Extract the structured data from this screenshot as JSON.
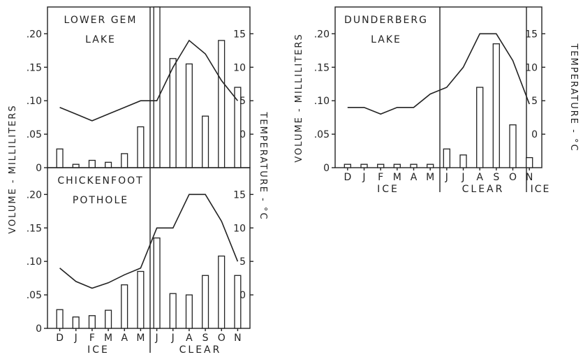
{
  "chart_data": [
    {
      "type": "bar+line",
      "title_lines": [
        "LOWER GEM",
        "LAKE"
      ],
      "categories": [
        "D",
        "J",
        "F",
        "M",
        "A",
        "M",
        "J",
        "J",
        "A",
        "S",
        "O",
        "N"
      ],
      "volume_ml": [
        0.028,
        0.005,
        0.011,
        0.008,
        0.021,
        0.061,
        0.24,
        0.163,
        0.155,
        0.077,
        0.19,
        0.12
      ],
      "temperature_c": [
        4,
        3,
        2,
        3,
        4,
        5,
        5,
        10,
        14,
        12,
        8,
        5
      ],
      "ylim_left": [
        0,
        0.24
      ],
      "ylim_right": [
        -5,
        19
      ],
      "left_ticks": [
        "0",
        ".05",
        ".10",
        ".15",
        ".20"
      ],
      "right_ticks": [
        "0",
        "5",
        "10",
        "15"
      ],
      "left_tick_values": [
        0,
        0.05,
        0.1,
        0.15,
        0.2
      ],
      "right_tick_values": [
        0,
        5,
        10,
        15
      ]
    },
    {
      "type": "bar+line",
      "title_lines": [
        "CHICKENFOOT",
        "POTHOLE"
      ],
      "categories": [
        "D",
        "J",
        "F",
        "M",
        "A",
        "M",
        "J",
        "J",
        "A",
        "S",
        "O",
        "N"
      ],
      "volume_ml": [
        0.028,
        0.017,
        0.019,
        0.027,
        0.065,
        0.085,
        0.135,
        0.052,
        0.05,
        0.079,
        0.108,
        0.079
      ],
      "temperature_c": [
        4,
        2,
        1,
        1.8,
        3,
        4,
        10,
        10,
        15,
        15,
        11,
        5
      ],
      "ylim_left": [
        0,
        0.24
      ],
      "ylim_right": [
        -5,
        19
      ],
      "left_ticks": [
        "0",
        ".05",
        ".10",
        ".15",
        ".20"
      ],
      "right_ticks": [
        "0",
        "5",
        "10",
        "15"
      ],
      "left_tick_values": [
        0,
        0.05,
        0.1,
        0.15,
        0.2
      ],
      "right_tick_values": [
        0,
        5,
        10,
        15
      ]
    },
    {
      "type": "bar+line",
      "title_lines": [
        "DUNDERBERG",
        "LAKE"
      ],
      "categories": [
        "D",
        "J",
        "F",
        "M",
        "A",
        "M",
        "J",
        "J",
        "A",
        "S",
        "O",
        "N"
      ],
      "volume_ml": [
        0.005,
        0.005,
        0.005,
        0.005,
        0.005,
        0.005,
        0.028,
        0.019,
        0.12,
        0.185,
        0.064,
        0.015
      ],
      "temperature_c": [
        4,
        4,
        3,
        4,
        4,
        6,
        7,
        10,
        15,
        15,
        11,
        4.5
      ],
      "ylim_left": [
        0,
        0.24
      ],
      "ylim_right": [
        -5,
        19
      ],
      "left_ticks": [
        "0",
        ".05",
        ".10",
        ".15",
        ".20"
      ],
      "right_ticks": [
        "0",
        "5",
        "10",
        "15"
      ],
      "left_tick_values": [
        0,
        0.05,
        0.1,
        0.15,
        0.2
      ],
      "right_tick_values": [
        0,
        5,
        10,
        15
      ]
    }
  ],
  "labels": {
    "y_left": "VOLUME - MILLILITERS",
    "y_right": "TEMPERATURE - °C",
    "ice": "ICE",
    "clear": "CLEAR"
  }
}
